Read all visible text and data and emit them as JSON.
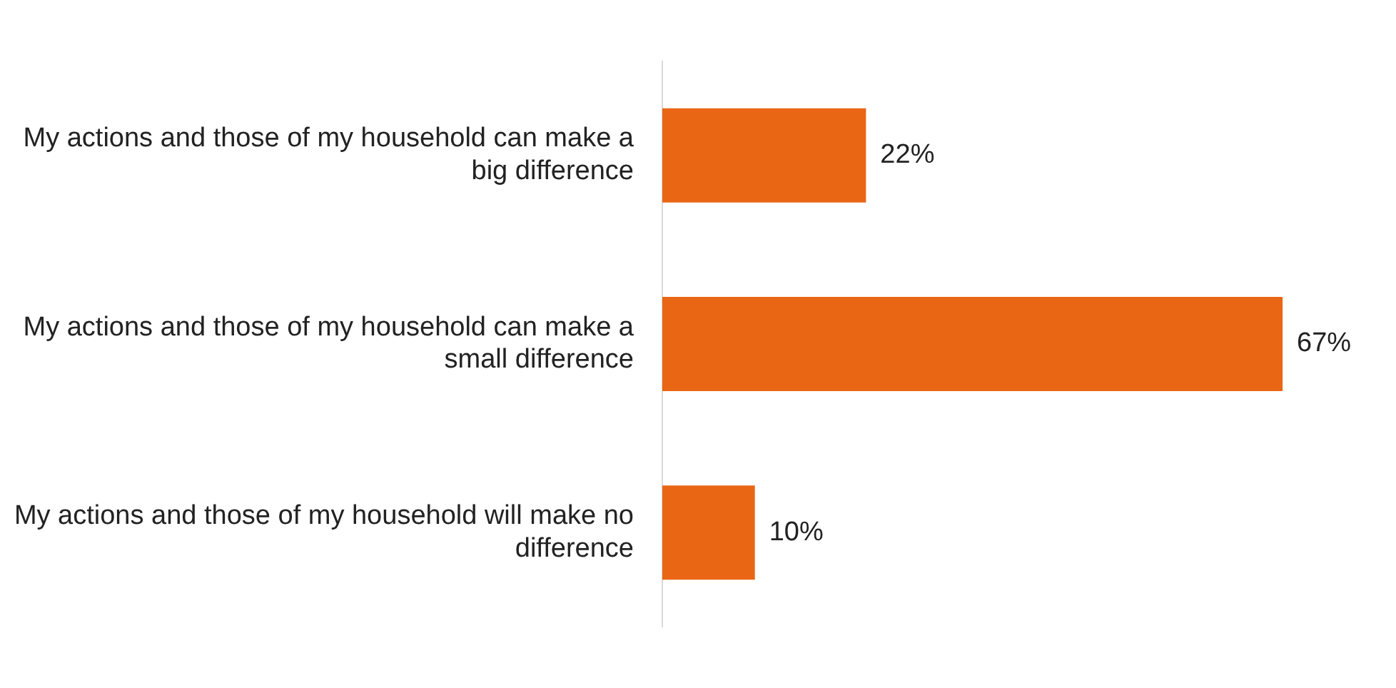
{
  "chart_data": {
    "type": "bar",
    "orientation": "horizontal",
    "categories": [
      "My actions and those of my household can make a big difference",
      "My actions and those of my household can make a small difference",
      "My actions and those of my household will make no difference"
    ],
    "values": [
      22,
      67,
      10
    ],
    "value_labels": [
      "22%",
      "67%",
      "10%"
    ],
    "color": "#e96614",
    "legend": false,
    "tick_labels": "y"
  }
}
